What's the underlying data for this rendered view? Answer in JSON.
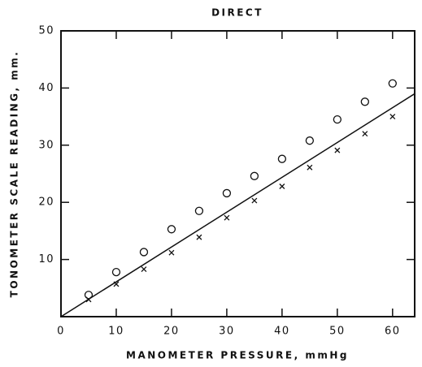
{
  "chart_data": {
    "type": "scatter",
    "title": "DIRECT",
    "x_label": "MANOMETER PRESSURE, mmHg",
    "y_label": "TONOMETER SCALE READING, mm.",
    "series": [
      {
        "marker": "circle",
        "color": "#111111",
        "x": [
          5,
          10,
          15,
          20,
          25,
          30,
          35,
          40,
          45,
          50,
          55,
          60
        ],
        "values": [
          3.8,
          7.8,
          11.3,
          15.3,
          18.5,
          21.6,
          24.6,
          27.6,
          30.8,
          34.5,
          37.6,
          40.8
        ]
      },
      {
        "marker": "cross",
        "color": "#111111",
        "x": [
          5,
          10,
          15,
          20,
          25,
          30,
          35,
          40,
          45,
          50,
          55,
          60
        ],
        "values": [
          3.0,
          5.7,
          8.3,
          11.2,
          13.9,
          17.3,
          20.3,
          22.8,
          26.1,
          29.1,
          32.0,
          35.0
        ]
      }
    ],
    "fit_line": {
      "x": [
        0,
        64
      ],
      "values": [
        0,
        39
      ],
      "color": "#111111"
    },
    "xlim": [
      0,
      64
    ],
    "ylim": [
      0,
      50
    ],
    "xticks": [
      0,
      10,
      20,
      30,
      40,
      50,
      60
    ],
    "yticks": [
      10,
      20,
      30,
      40,
      50
    ]
  }
}
